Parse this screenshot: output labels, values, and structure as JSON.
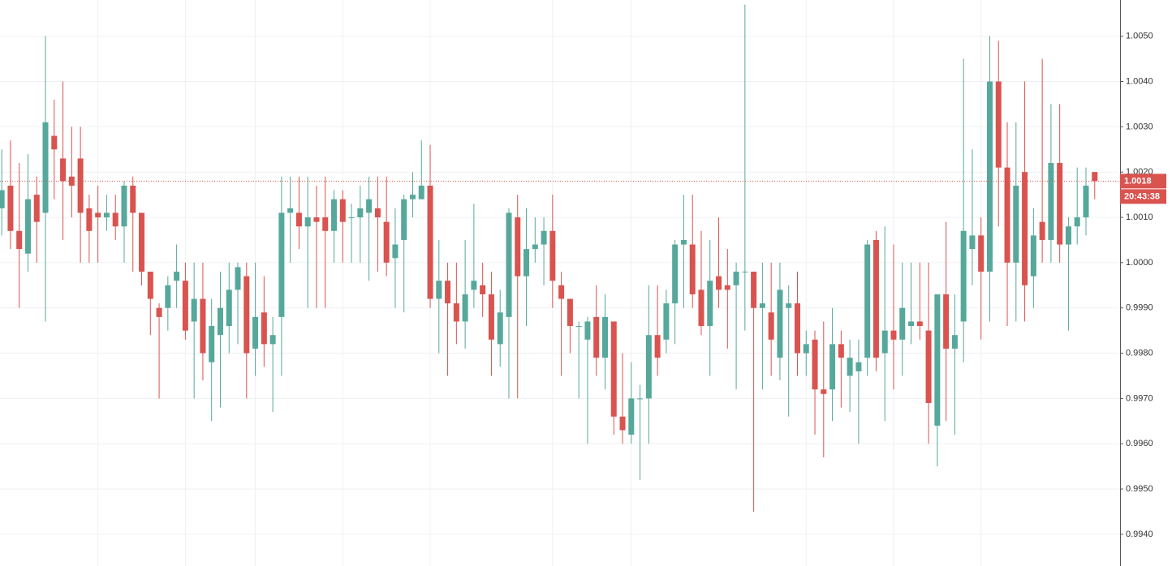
{
  "chart_data": {
    "type": "candlestick",
    "up_color": "#56a89b",
    "down_color": "#d9534f",
    "grid": true,
    "open": [
      1.0012,
      1.0017,
      1.0007,
      1.0002,
      1.0015,
      1.0011,
      1.0028,
      1.0023,
      1.0019,
      1.0023,
      1.0012,
      1.0011,
      1.001,
      1.0011,
      1.0008,
      1.0017,
      1.0011,
      0.9998,
      0.999,
      0.999,
      0.9996,
      0.9996,
      0.9987,
      0.9992,
      0.9978,
      0.9984,
      0.9986,
      0.9994,
      0.9997,
      0.9981,
      0.9989,
      0.9982,
      0.9988,
      1.0011,
      1.0011,
      1.0008,
      1.001,
      1.001,
      1.0007,
      1.0014,
      1.001,
      1.001,
      1.0011,
      1.0012,
      1.0009,
      1.0001,
      1.0005,
      1.0014,
      1.0014,
      1.0017,
      0.9992,
      0.9996,
      0.9991,
      0.9987,
      0.9994,
      0.9995,
      0.9993,
      0.9982,
      0.9988,
      1.001,
      0.9997,
      1.0003,
      1.0004,
      1.0007,
      0.9995,
      0.9992,
      0.9986,
      0.9983,
      0.9988,
      0.9979,
      0.9987,
      0.9966,
      0.9962,
      0.997,
      0.997,
      0.9984,
      0.9983,
      0.9991,
      1.0004,
      1.0004,
      0.9994,
      0.9986,
      0.9997,
      0.9995,
      0.9995,
      0.9998,
      0.9998,
      0.999,
      0.9989,
      0.9979,
      0.999,
      0.9991,
      0.998,
      0.9983,
      0.9972,
      0.9972,
      0.9982,
      0.9975,
      0.9976,
      0.9979,
      1.0005,
      0.998,
      0.9985,
      0.9983,
      0.9986,
      0.9987,
      0.9985,
      0.9964,
      0.9993,
      0.9981,
      0.9987,
      1.0003,
      1.0006,
      0.9998,
      1.004,
      1.0021,
      1.0,
      1.002,
      0.9997,
      1.0009,
      1.0005,
      1.0022,
      1.0004,
      1.0008,
      1.001,
      1.002
    ],
    "high": [
      1.0025,
      1.0027,
      1.0022,
      1.0024,
      1.0019,
      1.005,
      1.0036,
      1.004,
      1.003,
      1.003,
      1.0015,
      1.0017,
      1.0015,
      1.0015,
      1.0018,
      1.0019,
      1.0011,
      0.9998,
      0.9991,
      0.9997,
      1.0004,
      1.0,
      1.0,
      1.0,
      0.9992,
      0.9998,
      1.0,
      1.0,
      1.0,
      1.0,
      0.9997,
      0.9988,
      1.0019,
      1.0019,
      1.0019,
      1.0019,
      1.0017,
      1.0019,
      1.0016,
      1.0016,
      1.0013,
      1.0017,
      1.0019,
      1.0019,
      1.0019,
      1.0012,
      1.0015,
      1.002,
      1.0027,
      1.0026,
      1.0005,
      1.0,
      1.0,
      1.0005,
      1.0013,
      1.0,
      0.9998,
      0.9994,
      1.0012,
      1.0015,
      1.0012,
      1.001,
      1.001,
      1.0015,
      0.9998,
      0.9992,
      0.9987,
      0.9988,
      0.9995,
      0.9993,
      0.9987,
      0.998,
      0.9978,
      0.9973,
      0.9995,
      0.9995,
      0.9994,
      1.0005,
      1.0015,
      1.0015,
      1.0007,
      1.0005,
      1.001,
      1.0003,
      1.0,
      1.0057,
      0.9998,
      1.0,
      1.0,
      1.0,
      0.9995,
      0.9998,
      0.9985,
      0.9985,
      0.9987,
      0.999,
      0.9985,
      0.9983,
      0.9983,
      1.0005,
      1.0007,
      1.0008,
      1.0004,
      1.0,
      1.0,
      1.0,
      1.0,
      0.9993,
      1.0009,
      0.9993,
      1.0045,
      1.0025,
      1.001,
      1.005,
      1.0049,
      1.0031,
      1.0031,
      1.004,
      1.0012,
      1.0045,
      1.0035,
      1.0035,
      1.001,
      1.0021,
      1.0021,
      1.002
    ],
    "low": [
      1.0006,
      1.0003,
      0.999,
      0.9998,
      1.0,
      0.9987,
      1.0014,
      1.0005,
      1.001,
      1.0,
      1.0,
      1.0,
      1.0007,
      1.0005,
      1.0,
      0.9998,
      0.9995,
      0.9984,
      0.997,
      0.9985,
      0.999,
      0.9983,
      0.997,
      0.9974,
      0.9965,
      0.9968,
      0.998,
      0.9982,
      0.997,
      0.9975,
      0.9977,
      0.9967,
      0.9975,
      1.0,
      1.0003,
      0.999,
      0.999,
      0.999,
      1.0,
      1.0,
      1.0,
      1.0,
      0.9996,
      0.9998,
      0.9997,
      0.999,
      0.9989,
      1.001,
      1.0014,
      0.999,
      0.998,
      0.9975,
      0.9982,
      0.9981,
      0.999,
      0.9988,
      0.9975,
      0.9977,
      0.997,
      0.997,
      0.9986,
      1.0,
      0.9995,
      0.999,
      0.9975,
      0.998,
      0.997,
      0.996,
      0.9975,
      0.9972,
      0.9962,
      0.996,
      0.996,
      0.9952,
      0.996,
      0.9975,
      0.998,
      0.9982,
      0.999,
      0.999,
      0.9984,
      0.9975,
      0.999,
      0.9981,
      0.9972,
      0.9985,
      0.9945,
      0.9972,
      0.9975,
      0.9974,
      0.9966,
      0.9975,
      0.9975,
      0.9962,
      0.9957,
      0.9965,
      0.9968,
      0.9967,
      0.996,
      0.9975,
      0.9976,
      0.9965,
      0.9972,
      0.9975,
      0.9982,
      0.9983,
      0.996,
      0.9955,
      0.9965,
      0.9962,
      0.9978,
      0.9995,
      0.9983,
      0.9987,
      1.0008,
      0.9986,
      0.9987,
      0.9987,
      0.999,
      1.0,
      1.0,
      1.0,
      0.9985,
      1.0004,
      1.0006,
      1.0014
    ],
    "close": [
      1.0016,
      1.0007,
      1.0003,
      1.0014,
      1.0009,
      1.0031,
      1.0025,
      1.0018,
      1.0017,
      1.0011,
      1.0007,
      1.001,
      1.0011,
      1.0008,
      1.0017,
      1.0011,
      0.9998,
      0.9992,
      0.9988,
      0.9995,
      0.9998,
      0.9985,
      0.9992,
      0.998,
      0.9986,
      0.999,
      0.9994,
      0.9999,
      0.998,
      0.9988,
      0.9982,
      0.9984,
      1.0011,
      1.0012,
      1.0008,
      1.001,
      1.0009,
      1.0007,
      1.0014,
      1.0009,
      1.001,
      1.0012,
      1.0014,
      1.001,
      1.0,
      1.0004,
      1.0014,
      1.0015,
      1.0017,
      0.9992,
      0.9996,
      0.9991,
      0.9987,
      0.9993,
      0.9996,
      0.9993,
      0.9983,
      0.9989,
      1.0011,
      0.9997,
      1.0003,
      1.0004,
      1.0007,
      0.9996,
      0.9992,
      0.9986,
      0.9986,
      0.9987,
      0.9979,
      0.9988,
      0.9966,
      0.9963,
      0.997,
      0.997,
      0.9984,
      0.9979,
      0.9991,
      1.0004,
      1.0005,
      0.9993,
      0.9986,
      0.9996,
      0.9994,
      0.9994,
      0.9998,
      0.9998,
      0.999,
      0.9991,
      0.9983,
      0.9994,
      0.9991,
      0.998,
      0.9982,
      0.9972,
      0.9971,
      0.9982,
      0.9979,
      0.9979,
      0.9978,
      1.0004,
      0.9979,
      0.9985,
      0.9983,
      0.999,
      0.9987,
      0.9986,
      0.9969,
      0.9993,
      0.9981,
      0.9984,
      1.0007,
      1.0006,
      0.9998,
      1.004,
      1.0021,
      1.0,
      1.0017,
      0.9995,
      1.0006,
      1.0005,
      1.0022,
      1.0004,
      1.0008,
      1.001,
      1.0017,
      1.0018
    ],
    "xlim": [
      -0.2,
      127.9
    ],
    "xticks": [
      11,
      21,
      29,
      39,
      49,
      63,
      72,
      92,
      102,
      112
    ],
    "ylim": [
      0.9933,
      1.0058
    ],
    "yticks": [
      {
        "value": 0.994,
        "label": "0.9940"
      },
      {
        "value": 0.995,
        "label": "0.9950"
      },
      {
        "value": 0.996,
        "label": "0.9960"
      },
      {
        "value": 0.997,
        "label": "0.9970"
      },
      {
        "value": 0.998,
        "label": "0.9980"
      },
      {
        "value": 0.999,
        "label": "0.9990"
      },
      {
        "value": 1.0,
        "label": "1.0000"
      },
      {
        "value": 1.001,
        "label": "1.0010"
      },
      {
        "value": 1.002,
        "label": "1.0020"
      },
      {
        "value": 1.003,
        "label": "1.0030"
      },
      {
        "value": 1.004,
        "label": "1.0040"
      },
      {
        "value": 1.005,
        "label": "1.0050"
      }
    ],
    "last_price": {
      "value": 1.0018,
      "label": "1.0018"
    },
    "countdown": "20:43:38"
  }
}
